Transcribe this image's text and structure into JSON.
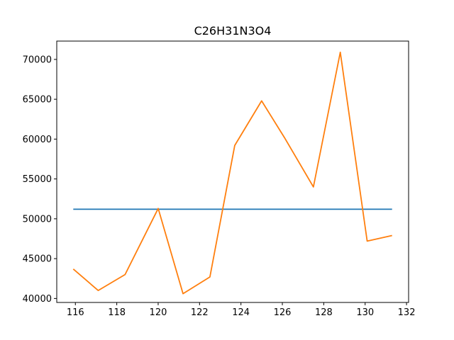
{
  "chart_data": {
    "type": "line",
    "title": "C26H31N3O4",
    "xlabel": "",
    "ylabel": "",
    "xlim": [
      115.1,
      132.1
    ],
    "ylim": [
      39500,
      72300
    ],
    "grid": false,
    "x_ticks": [
      116,
      118,
      120,
      122,
      124,
      126,
      128,
      130,
      132
    ],
    "y_ticks": [
      40000,
      45000,
      50000,
      55000,
      60000,
      65000,
      70000
    ],
    "series": [
      {
        "color": "#1f77b4",
        "x": [
          115.9,
          131.3
        ],
        "values": [
          51200,
          51200
        ]
      },
      {
        "color": "#ff7f0e",
        "x": [
          115.9,
          117.1,
          118.4,
          120.0,
          121.2,
          122.5,
          123.7,
          125.0,
          126.1,
          127.5,
          128.8,
          130.1,
          131.3
        ],
        "values": [
          43700,
          41000,
          43000,
          51300,
          40600,
          42700,
          59200,
          64800,
          60200,
          54000,
          70900,
          47200,
          47900
        ]
      }
    ]
  }
}
